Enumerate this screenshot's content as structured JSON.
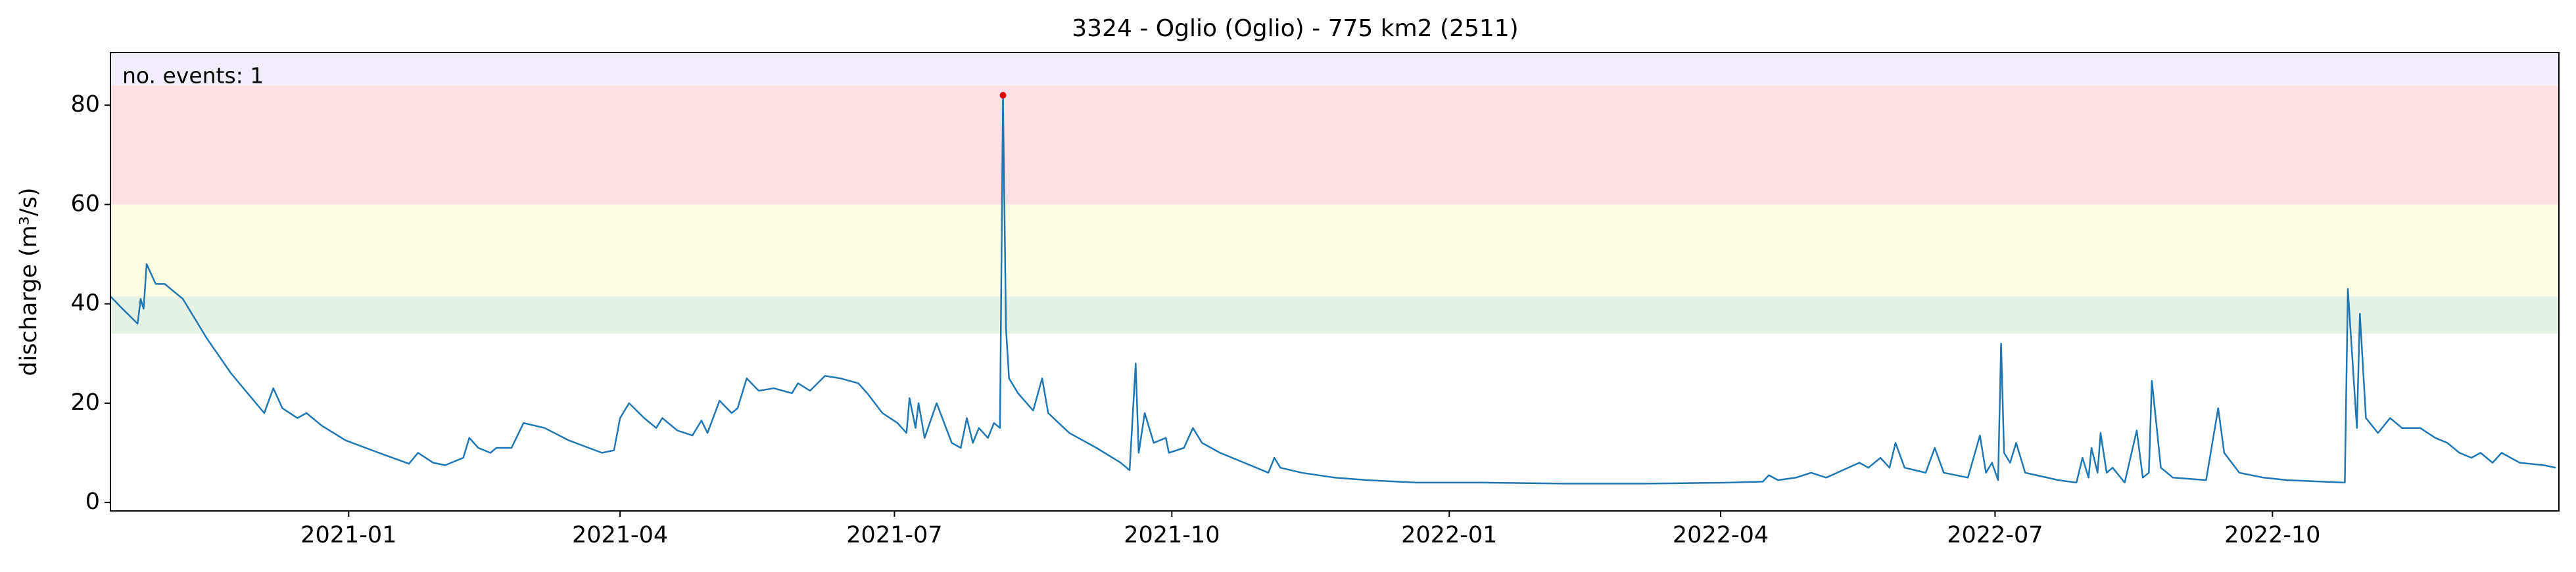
{
  "chart_data": {
    "type": "line",
    "title": "3324 - Oglio (Oglio) - 775 km2 (2511)",
    "ylabel": "discharge (m³/s)",
    "annotation": "no. events: 1",
    "annotation_color": "#dd0000",
    "color": "#1f77b4",
    "x": [
      "2020-10-14",
      "2020-10-18",
      "2020-10-23",
      "2020-10-24",
      "2020-10-25",
      "2020-10-26",
      "2020-10-29",
      "2020-11-01",
      "2020-11-07",
      "2020-11-15",
      "2020-11-23",
      "2020-12-04",
      "2020-12-07",
      "2020-12-10",
      "2020-12-15",
      "2020-12-18",
      "2020-12-23",
      "2020-12-31",
      "2021-01-11",
      "2021-01-21",
      "2021-01-24",
      "2021-01-29",
      "2021-02-02",
      "2021-02-08",
      "2021-02-10",
      "2021-02-13",
      "2021-02-17",
      "2021-02-19",
      "2021-02-24",
      "2021-02-28",
      "2021-03-07",
      "2021-03-15",
      "2021-03-26",
      "2021-03-30",
      "2021-04-01",
      "2021-04-04",
      "2021-04-09",
      "2021-04-13",
      "2021-04-15",
      "2021-04-20",
      "2021-04-25",
      "2021-04-28",
      "2021-04-30",
      "2021-05-04",
      "2021-05-08",
      "2021-05-10",
      "2021-05-13",
      "2021-05-17",
      "2021-05-22",
      "2021-05-28",
      "2021-05-30",
      "2021-06-03",
      "2021-06-08",
      "2021-06-13",
      "2021-06-19",
      "2021-06-22",
      "2021-06-27",
      "2021-07-02",
      "2021-07-05",
      "2021-07-06",
      "2021-07-08",
      "2021-07-09",
      "2021-07-11",
      "2021-07-15",
      "2021-07-20",
      "2021-07-23",
      "2021-07-25",
      "2021-07-27",
      "2021-07-29",
      "2021-08-01",
      "2021-08-03",
      "2021-08-05",
      "2021-08-06",
      "2021-08-07",
      "2021-08-08",
      "2021-08-11",
      "2021-08-16",
      "2021-08-19",
      "2021-08-21",
      "2021-08-28",
      "2021-09-06",
      "2021-09-14",
      "2021-09-17",
      "2021-09-19",
      "2021-09-20",
      "2021-09-22",
      "2021-09-25",
      "2021-09-29",
      "2021-09-30",
      "2021-10-05",
      "2021-10-08",
      "2021-10-11",
      "2021-10-17",
      "2021-10-25",
      "2021-11-02",
      "2021-11-04",
      "2021-11-06",
      "2021-11-13",
      "2021-11-24",
      "2021-12-05",
      "2021-12-21",
      "2022-01-12",
      "2022-02-08",
      "2022-03-07",
      "2022-04-04",
      "2022-04-15",
      "2022-04-17",
      "2022-04-20",
      "2022-04-26",
      "2022-05-01",
      "2022-05-06",
      "2022-05-17",
      "2022-05-20",
      "2022-05-24",
      "2022-05-27",
      "2022-05-29",
      "2022-06-01",
      "2022-06-08",
      "2022-06-11",
      "2022-06-14",
      "2022-06-22",
      "2022-06-26",
      "2022-06-28",
      "2022-06-30",
      "2022-07-02",
      "2022-07-03",
      "2022-07-04",
      "2022-07-06",
      "2022-07-08",
      "2022-07-11",
      "2022-07-22",
      "2022-07-28",
      "2022-07-30",
      "2022-08-01",
      "2022-08-02",
      "2022-08-04",
      "2022-08-05",
      "2022-08-07",
      "2022-08-09",
      "2022-08-13",
      "2022-08-17",
      "2022-08-19",
      "2022-08-21",
      "2022-08-22",
      "2022-08-25",
      "2022-08-29",
      "2022-09-09",
      "2022-09-13",
      "2022-09-15",
      "2022-09-20",
      "2022-09-28",
      "2022-10-06",
      "2022-10-25",
      "2022-10-26",
      "2022-10-29",
      "2022-10-30",
      "2022-11-01",
      "2022-11-05",
      "2022-11-09",
      "2022-11-13",
      "2022-11-19",
      "2022-11-24",
      "2022-11-28",
      "2022-12-02",
      "2022-12-06",
      "2022-12-09",
      "2022-12-13",
      "2022-12-16",
      "2022-12-22",
      "2022-12-30",
      "2023-01-03"
    ],
    "values": [
      41.5,
      39,
      36,
      41,
      39,
      48,
      44,
      44,
      41,
      33,
      26,
      18,
      23,
      19,
      17,
      18,
      15.5,
      12.5,
      10,
      7.8,
      10,
      8,
      7.5,
      9,
      13,
      11,
      10,
      11,
      11,
      16,
      15,
      12.5,
      10,
      10.5,
      17,
      20,
      17,
      15,
      17,
      14.5,
      13.5,
      16.5,
      14,
      20.5,
      18,
      19,
      25,
      22.5,
      23,
      22,
      24,
      22.5,
      25.5,
      25,
      24,
      22,
      18,
      16,
      14,
      21,
      15,
      20,
      13,
      20,
      12,
      11,
      17,
      12,
      15,
      13,
      16,
      15,
      82,
      35,
      25,
      22,
      18.5,
      25,
      18,
      14,
      11,
      8,
      6.5,
      28,
      10,
      18,
      12,
      13,
      10,
      11,
      15,
      12,
      10,
      8,
      6,
      9,
      7,
      6,
      5,
      4.5,
      4,
      4,
      3.8,
      3.8,
      4,
      4.2,
      5.5,
      4.5,
      5,
      6,
      5,
      8,
      7,
      9,
      7,
      12,
      7,
      6,
      11,
      6,
      5,
      13.5,
      6,
      8,
      4.5,
      32,
      10,
      8,
      12,
      6,
      4.5,
      4,
      9,
      5,
      11,
      6,
      14,
      6,
      7,
      4,
      14.5,
      5,
      6,
      24.5,
      7,
      5,
      4.5,
      19,
      10,
      6,
      5,
      4.5,
      4,
      43,
      15,
      38,
      17,
      14,
      17,
      15,
      15,
      13,
      12,
      10,
      9,
      10,
      8,
      10,
      8,
      7.5,
      7
    ],
    "events": {
      "x": [
        "2021-08-06"
      ],
      "values": [
        82
      ],
      "color": "#dd0000"
    },
    "bands": [
      {
        "from": 34,
        "to": 41.5,
        "color": "#e5f2e5"
      },
      {
        "from": 41.5,
        "to": 60,
        "color": "#ffffe3"
      },
      {
        "from": 60,
        "to": 84,
        "color": "#ffe1e5"
      },
      {
        "from": 84,
        "to": 90.6,
        "color": "#f1eefa"
      }
    ],
    "xlim": [
      "2020-10-14",
      "2023-01-04"
    ],
    "ylim": [
      -1.7,
      90.6
    ],
    "yticks": [
      0,
      20,
      40,
      60,
      80
    ],
    "xticks": [
      {
        "value": "2021-01-01",
        "label": "2021-01"
      },
      {
        "value": "2021-04-01",
        "label": "2021-04"
      },
      {
        "value": "2021-07-01",
        "label": "2021-07"
      },
      {
        "value": "2021-10-01",
        "label": "2021-10"
      },
      {
        "value": "2022-01-01",
        "label": "2022-01"
      },
      {
        "value": "2022-04-01",
        "label": "2022-04"
      },
      {
        "value": "2022-07-01",
        "label": "2022-07"
      },
      {
        "value": "2022-10-01",
        "label": "2022-10"
      }
    ]
  }
}
